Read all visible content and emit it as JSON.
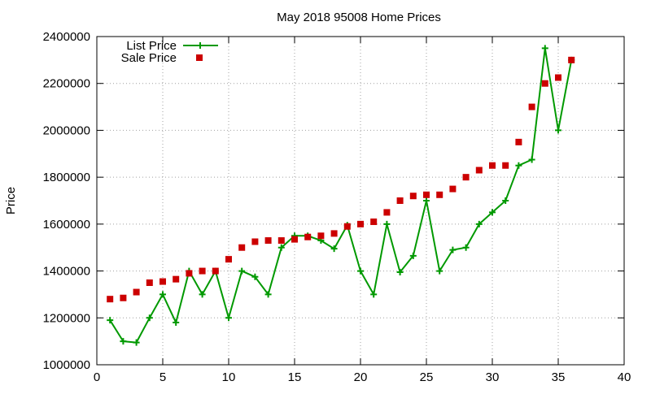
{
  "chart_data": {
    "type": "line",
    "title": "May 2018 95008 Home Prices",
    "xlabel": "",
    "ylabel": "Price",
    "xlim": [
      0,
      40
    ],
    "ylim": [
      1000000,
      2400000
    ],
    "xticks": [
      0,
      5,
      10,
      15,
      20,
      25,
      30,
      35,
      40
    ],
    "yticks": [
      1000000,
      1200000,
      1400000,
      1600000,
      1800000,
      2000000,
      2200000,
      2400000
    ],
    "grid": true,
    "legend_position": "top-left",
    "x": [
      1,
      2,
      3,
      4,
      5,
      6,
      7,
      8,
      9,
      10,
      11,
      12,
      13,
      14,
      15,
      16,
      17,
      18,
      19,
      20,
      21,
      22,
      23,
      24,
      25,
      26,
      27,
      28,
      29,
      30,
      31,
      32,
      33,
      34,
      35,
      36
    ],
    "series": [
      {
        "name": "List Price",
        "style": "line+cross",
        "color": "#009900",
        "values": [
          1190000,
          1100000,
          1095000,
          1200000,
          1300000,
          1180000,
          1400000,
          1300000,
          1400000,
          1200000,
          1400000,
          1375000,
          1300000,
          1500000,
          1550000,
          1550000,
          1530000,
          1495000,
          1595000,
          1400000,
          1300000,
          1600000,
          1395000,
          1465000,
          1700000,
          1400000,
          1490000,
          1500000,
          1600000,
          1650000,
          1700000,
          1850000,
          1875000,
          2350000,
          2000000,
          2300000
        ]
      },
      {
        "name": "Sale Price",
        "style": "square",
        "color": "#cc0000",
        "values": [
          1280000,
          1285000,
          1310000,
          1350000,
          1355000,
          1365000,
          1390000,
          1400000,
          1400000,
          1450000,
          1500000,
          1525000,
          1530000,
          1530000,
          1535000,
          1545000,
          1550000,
          1560000,
          1590000,
          1600000,
          1610000,
          1650000,
          1700000,
          1720000,
          1725000,
          1725000,
          1750000,
          1800000,
          1830000,
          1850000,
          1850000,
          1950000,
          2100000,
          2200000,
          2225000,
          2300000
        ]
      }
    ]
  }
}
